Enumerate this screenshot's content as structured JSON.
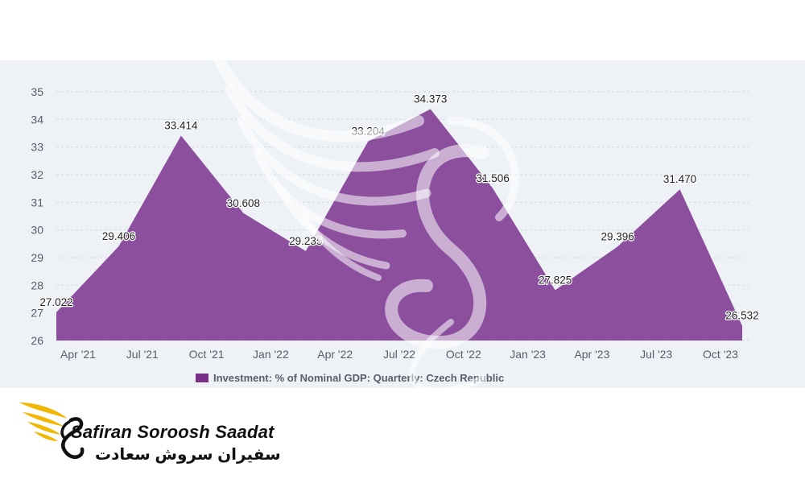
{
  "colors": {
    "area": "#8b4f9e",
    "panel": "#eef2f6",
    "legend_swatch": "#7a2f87",
    "brand_gold": "#f2b705"
  },
  "legend": {
    "label": "Investment: % of Nominal GDP: Quarterly: Czech Republic"
  },
  "brand": {
    "name": "Safiran Soroosh Saadat",
    "name_fa": "سفیران سروش سعادت",
    "icon": "phoenix-wing-logo"
  },
  "chart_data": {
    "type": "area",
    "title": "",
    "xlabel": "",
    "ylabel": "",
    "ylim": [
      26,
      35
    ],
    "y_ticks": [
      "26",
      "27",
      "28",
      "29",
      "30",
      "31",
      "32",
      "33",
      "34",
      "35"
    ],
    "x_tick_labels": [
      "Apr '21",
      "Jul '21",
      "Oct '21",
      "Jan '22",
      "Apr '22",
      "Jul '22",
      "Oct '22",
      "Jan '23",
      "Apr '23",
      "Jul '23",
      "Oct '23"
    ],
    "grid": true,
    "legend_position": "bottom",
    "series": [
      {
        "name": "Investment: % of Nominal GDP: Quarterly: Czech Republic",
        "x": [
          "Mar '21",
          "Jun '21",
          "Sep '21",
          "Dec '21",
          "Mar '22",
          "Jun '22",
          "Sep '22",
          "Dec '22",
          "Mar '23",
          "Jun '23",
          "Sep '23",
          "Dec '23"
        ],
        "values": [
          27.022,
          29.406,
          33.414,
          30.608,
          29.235,
          33.204,
          34.373,
          31.506,
          27.825,
          29.396,
          31.47,
          26.532
        ],
        "labels": [
          "27.022",
          "29.406",
          "33.414",
          "30.608",
          "29.235",
          "33.204",
          "34.373",
          "31.506",
          "27.825",
          "29.396",
          "31.470",
          "26.532"
        ]
      }
    ]
  }
}
